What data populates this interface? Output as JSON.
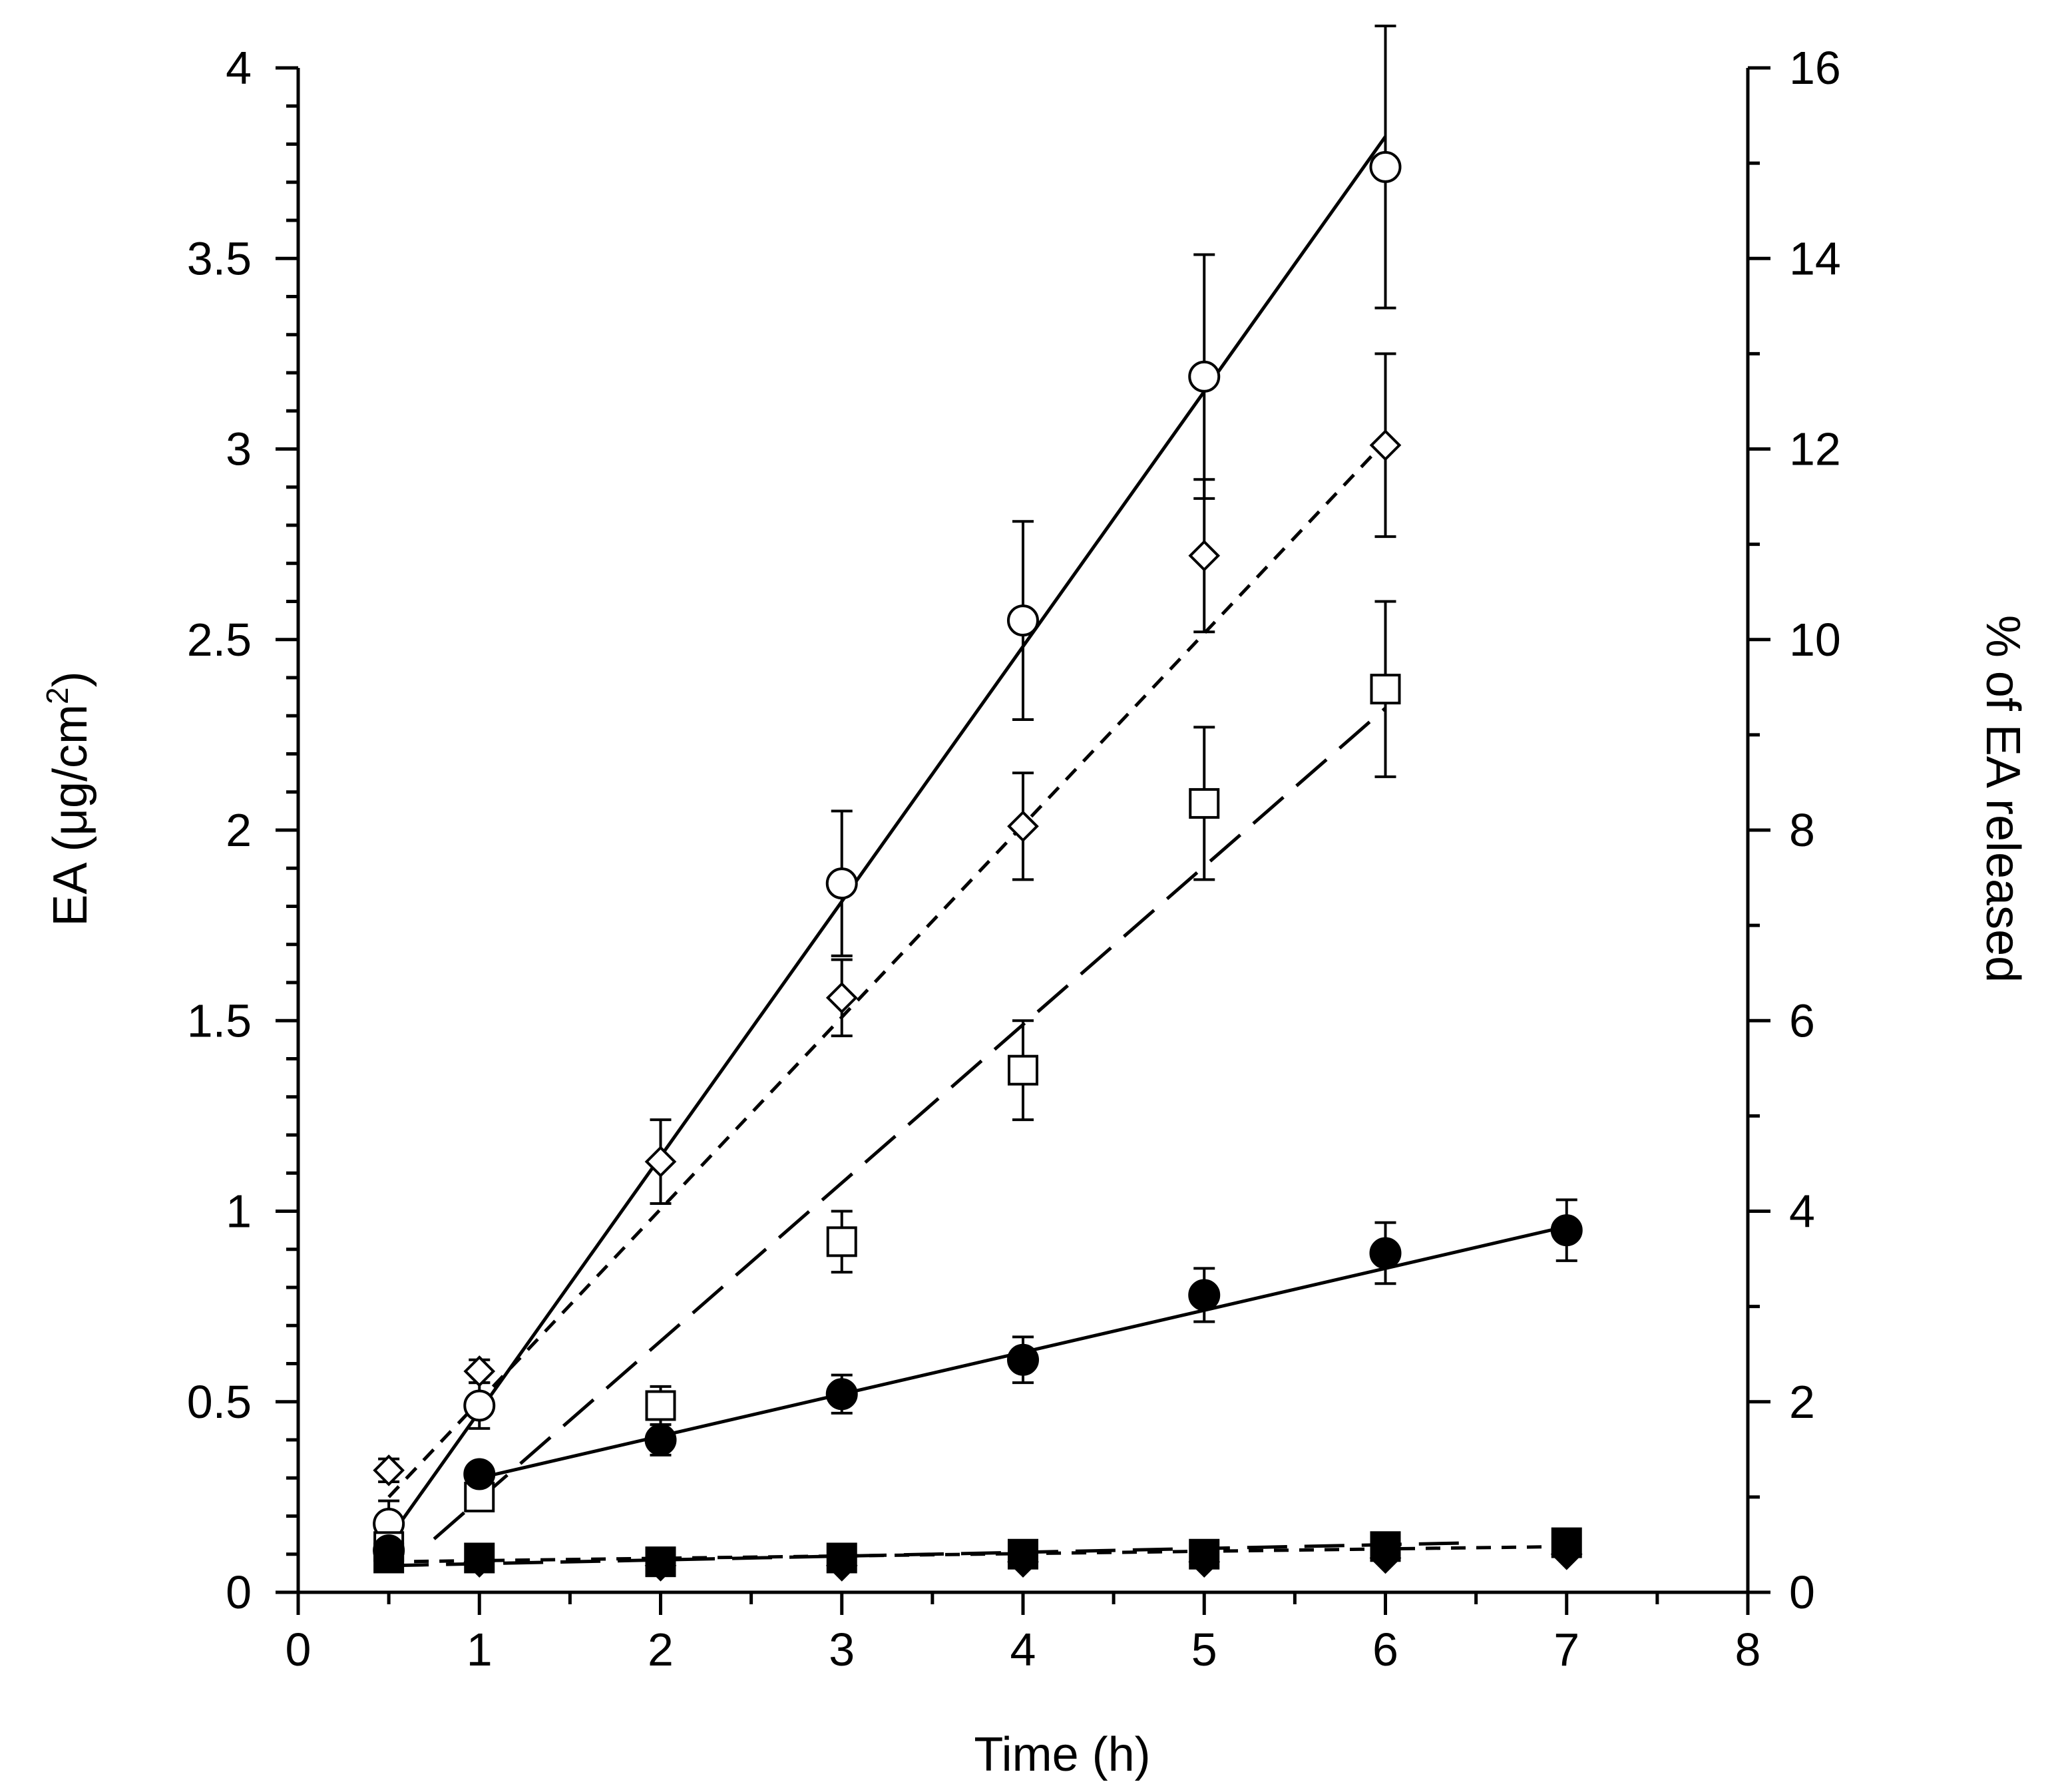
{
  "chart_data": {
    "type": "scatter",
    "title": "",
    "xlabel": "Time (h)",
    "ylabel_left": "EA (μg/cm",
    "ylabel_left_sup": "2",
    "ylabel_left_end": ")",
    "ylabel_right": "% of EA released",
    "xlim": [
      0,
      8
    ],
    "ylim_left": [
      0,
      4
    ],
    "ylim_right": [
      0,
      16
    ],
    "x_ticks": [
      "0",
      "1",
      "2",
      "3",
      "4",
      "5",
      "6",
      "7",
      "8"
    ],
    "y_ticks_left": [
      "0",
      "0.5",
      "1",
      "1.5",
      "2",
      "2.5",
      "3",
      "3.5",
      "4"
    ],
    "y_ticks_right": [
      "0",
      "2",
      "4",
      "6",
      "8",
      "10",
      "12",
      "14",
      "16"
    ],
    "series": [
      {
        "name": "open circles",
        "marker": "circle-open",
        "line": "solid",
        "x": [
          0.5,
          1,
          3,
          4,
          5,
          6
        ],
        "y": [
          0.18,
          0.49,
          1.86,
          2.55,
          3.19,
          3.74
        ],
        "err": [
          0.06,
          0.06,
          0.19,
          0.26,
          0.32,
          0.37
        ],
        "fit": [
          [
            0.5,
            0.14
          ],
          [
            6,
            3.82
          ]
        ]
      },
      {
        "name": "open diamonds",
        "marker": "diamond-open",
        "line": "short-dash",
        "x": [
          0.5,
          1,
          2,
          3,
          4,
          5,
          6
        ],
        "y": [
          0.32,
          0.58,
          1.13,
          1.56,
          2.01,
          2.72,
          3.01
        ],
        "err": [
          0.03,
          0.03,
          0.11,
          0.1,
          0.14,
          0.2,
          0.24
        ],
        "fit": [
          [
            0.5,
            0.25
          ],
          [
            6,
            3.02
          ]
        ]
      },
      {
        "name": "open squares",
        "marker": "square-open",
        "line": "long-dash",
        "x": [
          0.5,
          1,
          2,
          3,
          4,
          5,
          6
        ],
        "y": [
          0.12,
          0.25,
          0.49,
          0.92,
          1.37,
          2.07,
          2.37
        ],
        "err": [
          0.02,
          0.02,
          0.05,
          0.08,
          0.13,
          0.2,
          0.23
        ],
        "fit": [
          [
            0.75,
            0.14
          ],
          [
            6,
            2.32
          ]
        ]
      },
      {
        "name": "filled circles",
        "marker": "circle-filled",
        "line": "solid",
        "x": [
          0.5,
          1,
          2,
          3,
          4,
          5,
          6,
          7
        ],
        "y": [
          0.11,
          0.31,
          0.4,
          0.52,
          0.61,
          0.78,
          0.89,
          0.95
        ],
        "err": [
          0.02,
          0.02,
          0.04,
          0.05,
          0.06,
          0.07,
          0.08,
          0.08
        ],
        "fit": [
          [
            1,
            0.3
          ],
          [
            7,
            0.96
          ]
        ]
      },
      {
        "name": "filled squares",
        "marker": "square-filled",
        "line": "short-dash",
        "x": [
          0.5,
          1,
          2,
          3,
          4,
          5,
          6,
          7
        ],
        "y": [
          0.09,
          0.09,
          0.08,
          0.09,
          0.1,
          0.1,
          0.12,
          0.13
        ],
        "err": [
          0,
          0,
          0,
          0,
          0,
          0,
          0,
          0
        ],
        "fit": [
          [
            0.5,
            0.08
          ],
          [
            7,
            0.12
          ]
        ]
      },
      {
        "name": "filled diamonds",
        "marker": "diamond-filled",
        "line": "long-dash",
        "x": [
          0.5,
          1,
          2,
          3,
          4,
          5,
          6,
          7
        ],
        "y": [
          0.1,
          0.08,
          0.07,
          0.07,
          0.08,
          0.08,
          0.09,
          0.1
        ],
        "err": [
          0,
          0,
          0,
          0,
          0,
          0,
          0,
          0
        ],
        "fit": [
          [
            0.5,
            0.07
          ],
          [
            6.5,
            0.13
          ]
        ]
      }
    ]
  }
}
